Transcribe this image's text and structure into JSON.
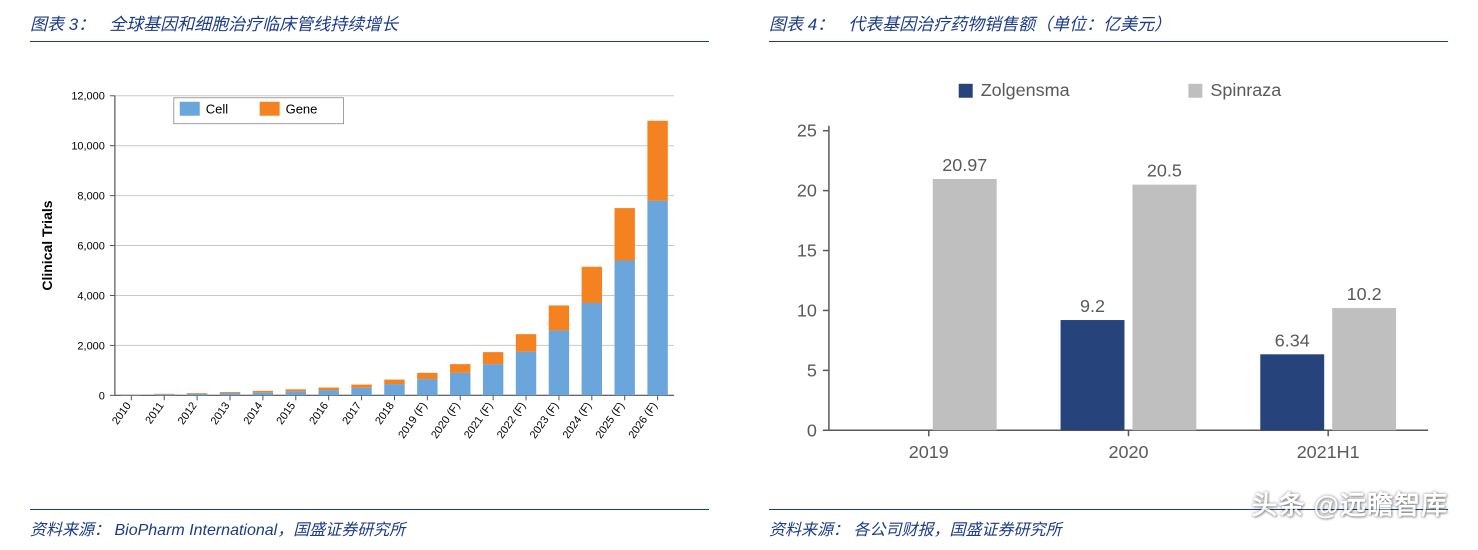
{
  "left": {
    "title_label": "图表 3：",
    "title_text": "全球基因和细胞治疗临床管线持续增长",
    "source_label": "资料来源：",
    "source_text": "BioPharm International，国盛证券研究所",
    "chart": {
      "type": "stacked-bar",
      "ylabel": "Clinical Trials",
      "ylim": [
        0,
        12000
      ],
      "ytick_step": 2000,
      "yticks": [
        "0",
        "2,000",
        "4,000",
        "6,000",
        "8,000",
        "10,000",
        "12,000"
      ],
      "categories": [
        "2010",
        "2011",
        "2012",
        "2013",
        "2014",
        "2015",
        "2016",
        "2017",
        "2018",
        "2019 (F)",
        "2020 (F)",
        "2021 (F)",
        "2022 (F)",
        "2023 (F)",
        "2024 (F)",
        "2025 (F)",
        "2026 (F)"
      ],
      "series": [
        {
          "name": "Cell",
          "color": "#6aa5db",
          "values": [
            20,
            40,
            60,
            90,
            120,
            160,
            210,
            300,
            450,
            650,
            900,
            1250,
            1750,
            2600,
            3700,
            5400,
            7800
          ]
        },
        {
          "name": "Gene",
          "color": "#f58220",
          "values": [
            10,
            20,
            30,
            40,
            60,
            80,
            100,
            130,
            180,
            250,
            350,
            480,
            700,
            1000,
            1450,
            2100,
            3200
          ]
        }
      ],
      "grid_color": "#c8c8c8",
      "axis_color": "#555555",
      "border_color": "#888888",
      "bg": "#ffffff",
      "bar_width": 0.62,
      "legend_item1": "Cell",
      "legend_item2": "Gene",
      "tick_fontsize": 11,
      "label_fontsize": 14
    }
  },
  "right": {
    "title_label": "图表 4：",
    "title_text": "代表基因治疗药物销售额（单位：亿美元）",
    "source_label": "资料来源：",
    "source_text": "各公司财报，国盛证券研究所",
    "chart": {
      "type": "grouped-bar",
      "ylim": [
        0,
        25
      ],
      "ytick_step": 5,
      "yticks": [
        "0",
        "5",
        "10",
        "15",
        "20",
        "25"
      ],
      "categories": [
        "2019",
        "2020",
        "2021H1"
      ],
      "series": [
        {
          "name": "Zolgensma",
          "color": "#26437b",
          "values": [
            null,
            9.2,
            6.34
          ]
        },
        {
          "name": "Spinraza",
          "color": "#bfbfbf",
          "values": [
            20.97,
            20.5,
            10.2
          ]
        }
      ],
      "axis_color": "#595959",
      "grid_color": "#e0e0e0",
      "bg": "#ffffff",
      "bar_width": 0.32,
      "bar_gap": 0.04,
      "tick_fontsize": 18,
      "value_fontsize": 18,
      "legend_fontsize": 18
    }
  },
  "watermark": "头条 @远瞻智库"
}
